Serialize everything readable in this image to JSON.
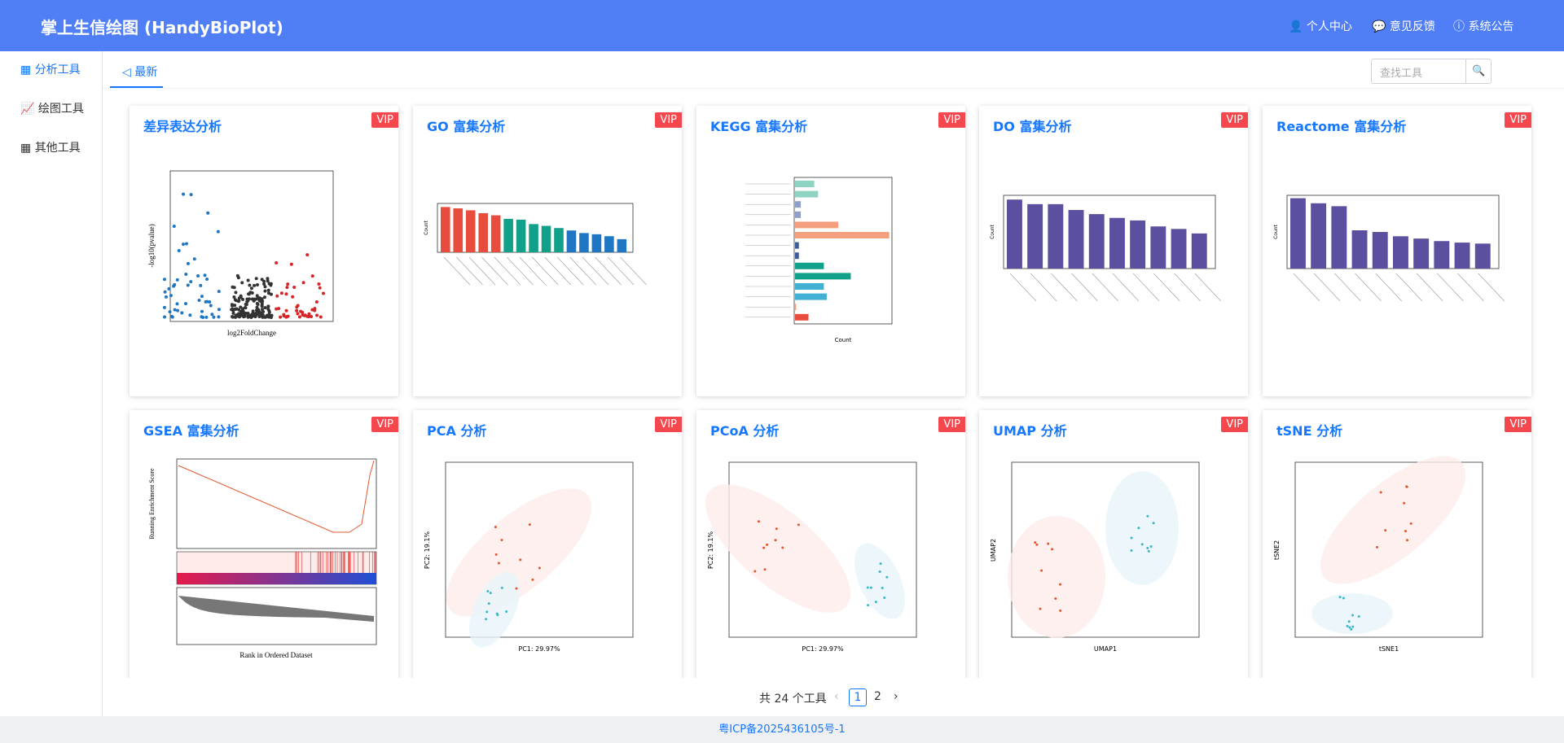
{
  "header": {
    "title": "掌上生信绘图 (HandyBioPlot)",
    "links": [
      "个人中心",
      "意见反馈",
      "系统公告"
    ]
  },
  "sidebar": {
    "items": [
      "分析工具",
      "绘图工具",
      "其他工具"
    ]
  },
  "tabs": [
    "最新"
  ],
  "search": {
    "placeholder": "查找工具"
  },
  "cards": [
    {
      "title": "差异表达分析",
      "badge": "VIP",
      "plot": {
        "kind": "volcano",
        "xlabel": "log2FoldChange",
        "ylabel": "-log10(pvalue)"
      }
    },
    {
      "title": "GO 富集分析",
      "badge": "VIP",
      "plot": {
        "kind": "bars",
        "ylabel": "Count"
      }
    },
    {
      "title": "KEGG 富集分析",
      "badge": "VIP",
      "plot": {
        "kind": "hbars",
        "xlabel": "Count"
      }
    },
    {
      "title": "DO 富集分析",
      "badge": "VIP",
      "plot": {
        "kind": "bars",
        "ylabel": "Count"
      }
    },
    {
      "title": "Reactome 富集分析",
      "badge": "VIP",
      "plot": {
        "kind": "bars",
        "ylabel": "Count"
      }
    },
    {
      "title": "GSEA 富集分析",
      "badge": "VIP",
      "plot": {
        "kind": "gsea",
        "xlabel": "Rank in Ordered Dataset",
        "ylabel": "Running Enrichment Score"
      }
    },
    {
      "title": "PCA 分析",
      "badge": "VIP",
      "plot": {
        "kind": "clusters",
        "xlabel": "PC1: 29.97%",
        "ylabel": "PC2: 19.1%"
      }
    },
    {
      "title": "PCoA 分析",
      "badge": "VIP",
      "plot": {
        "kind": "clusters",
        "xlabel": "PC1: 29.97%",
        "ylabel": "PC2: 19.1%"
      }
    },
    {
      "title": "UMAP 分析",
      "badge": "VIP",
      "plot": {
        "kind": "clusters",
        "xlabel": "UMAP1",
        "ylabel": "UMAP2"
      }
    },
    {
      "title": "tSNE 分析",
      "badge": "VIP",
      "plot": {
        "kind": "clusters",
        "xlabel": "tSNE1",
        "ylabel": "tSNE2"
      }
    }
  ],
  "pagination": {
    "total": "共 24 个工具",
    "pages": [
      1,
      2
    ]
  },
  "footer": {
    "icp": "粤ICP备2025436105号-1"
  }
}
